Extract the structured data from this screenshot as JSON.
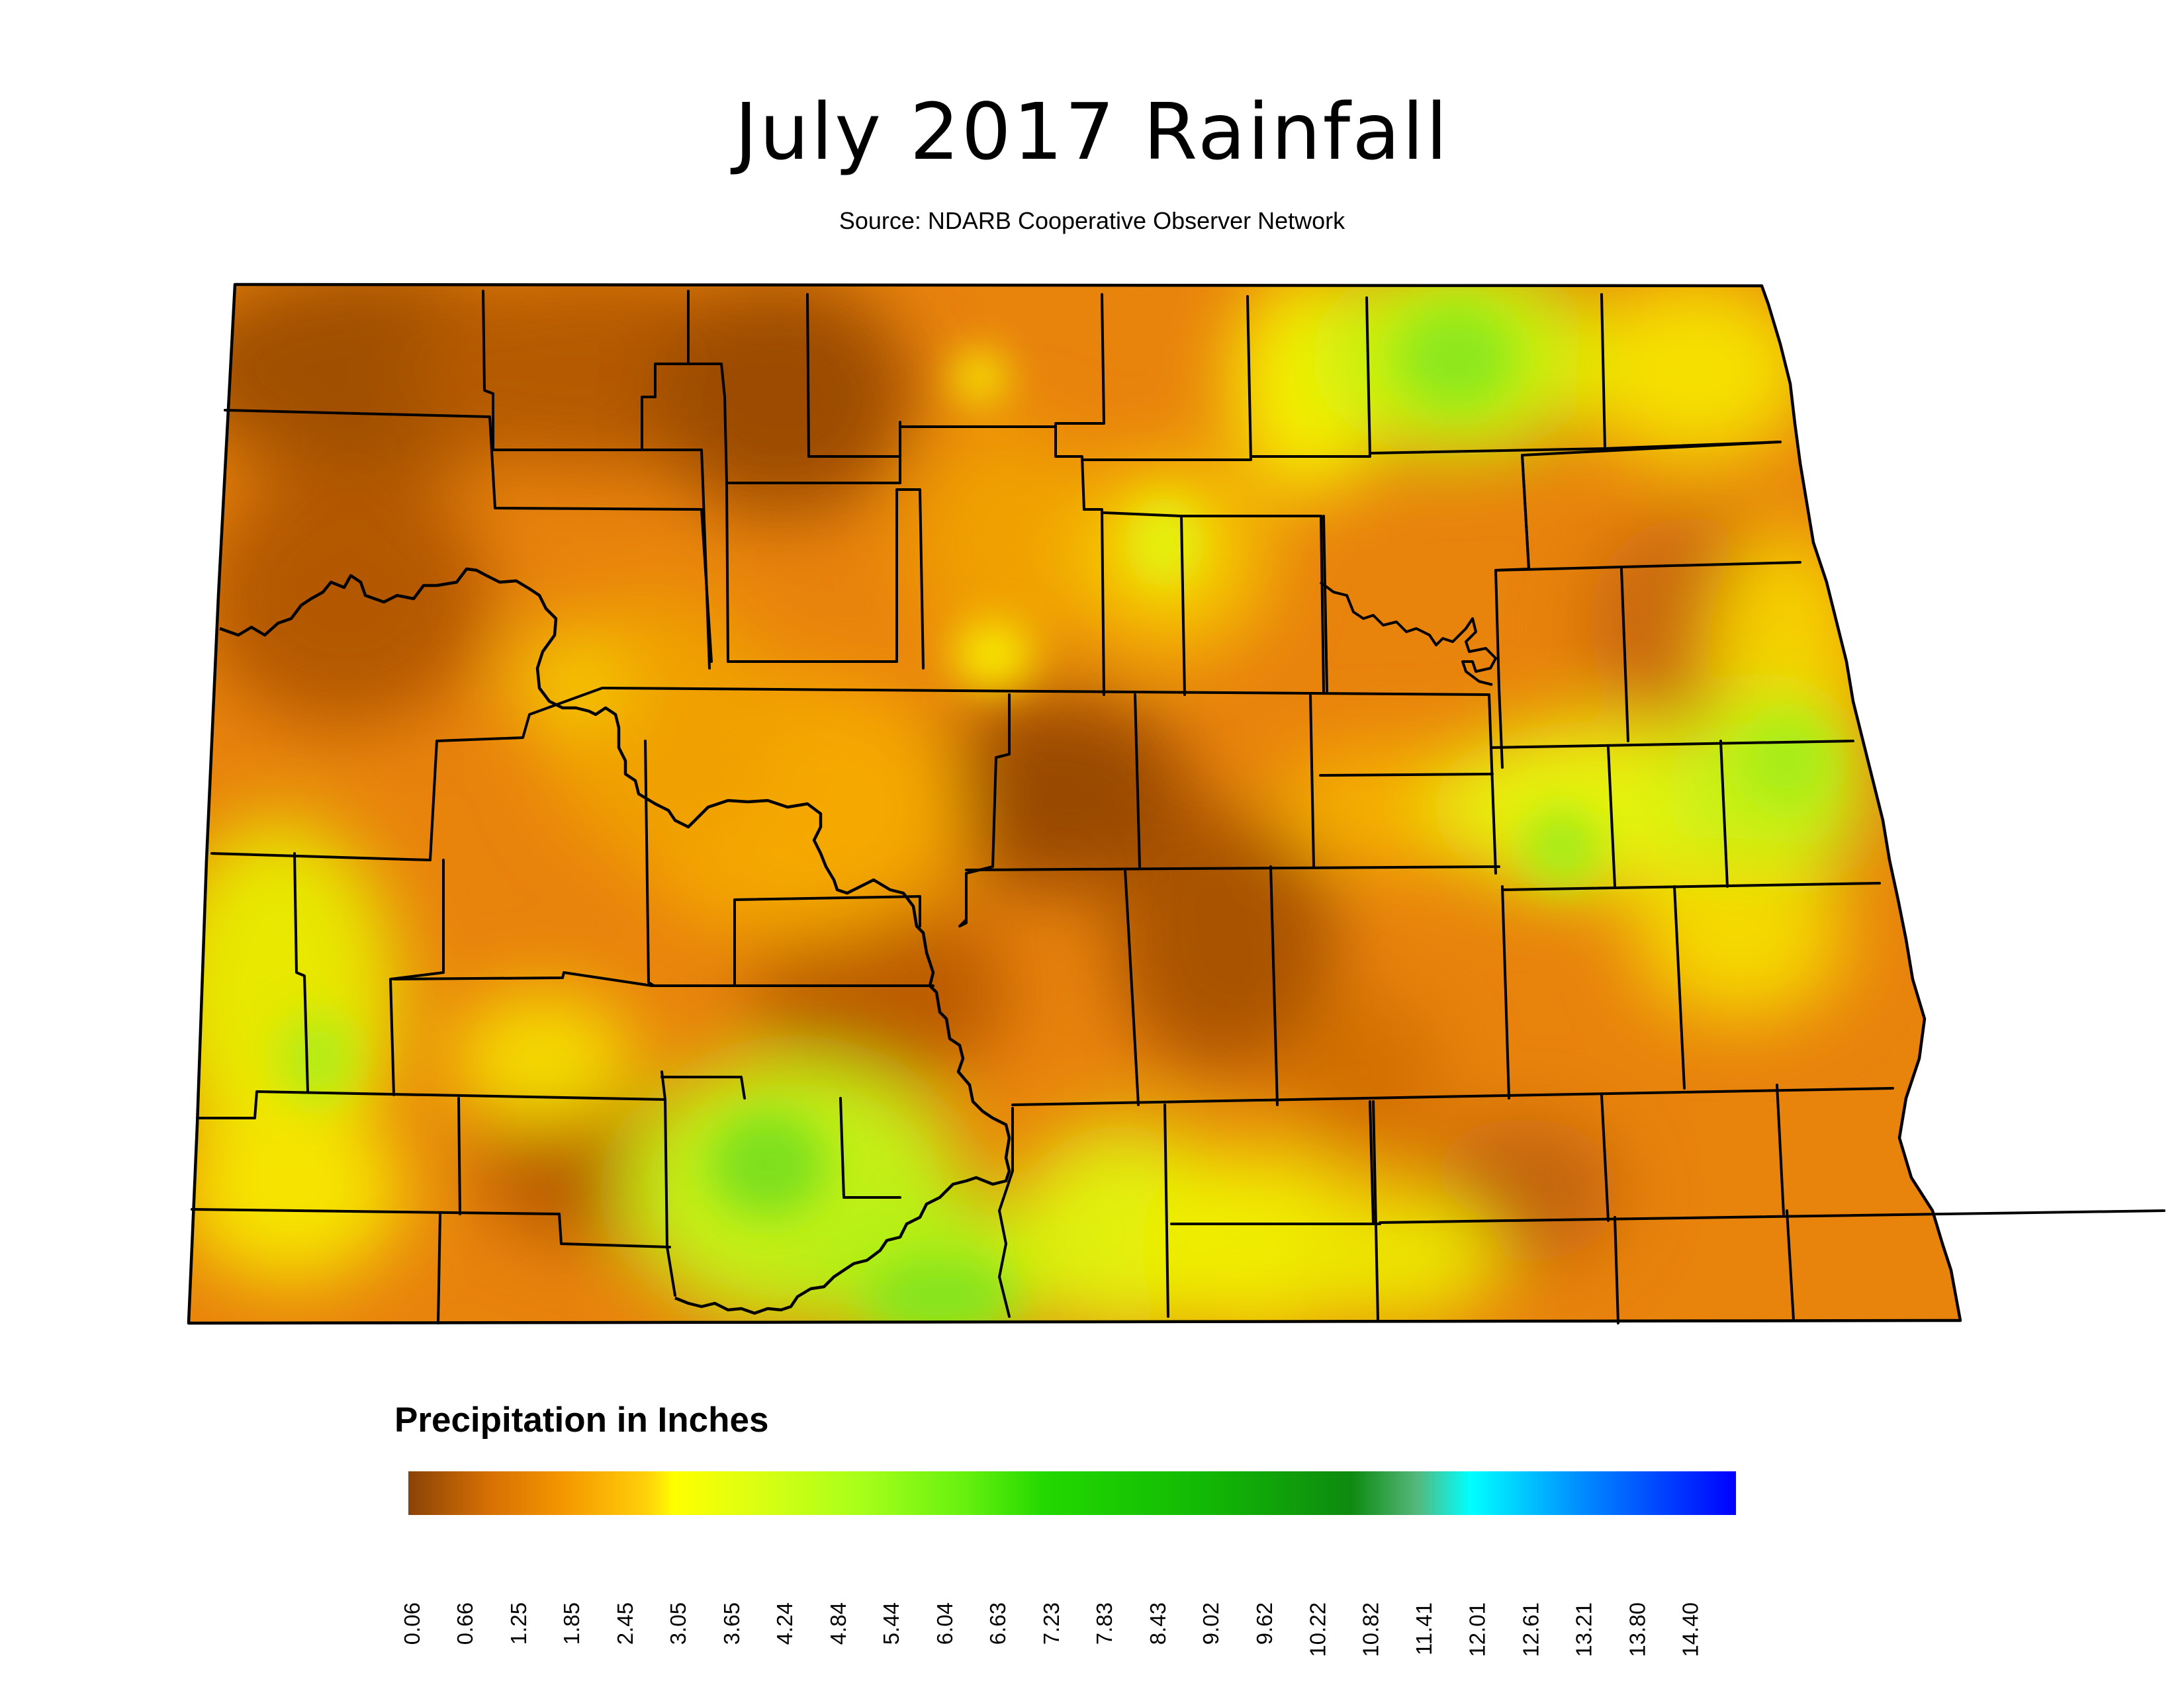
{
  "header": {
    "title": "July 2017 Rainfall",
    "subtitle": "Source: NDARB Cooperative Observer Network"
  },
  "legend": {
    "title": "Precipitation in Inches",
    "ticks": [
      "0.06",
      "0.66",
      "1.25",
      "1.85",
      "2.45",
      "3.05",
      "3.65",
      "4.24",
      "4.84",
      "5.44",
      "6.04",
      "6.63",
      "7.23",
      "7.83",
      "8.43",
      "9.02",
      "9.62",
      "10.22",
      "10.82",
      "11.41",
      "12.01",
      "12.61",
      "13.21",
      "13.80",
      "14.40"
    ],
    "color_stops": [
      "#8a4306",
      "#d66f04",
      "#f59a00",
      "#ffff00",
      "#a8ff1a",
      "#22d800",
      "#0e8a10",
      "#00ffff",
      "#0090ff",
      "#0000ff"
    ]
  },
  "map": {
    "region": "North Dakota",
    "base_color": "#e8810a",
    "boundary_color": "#000000"
  }
}
